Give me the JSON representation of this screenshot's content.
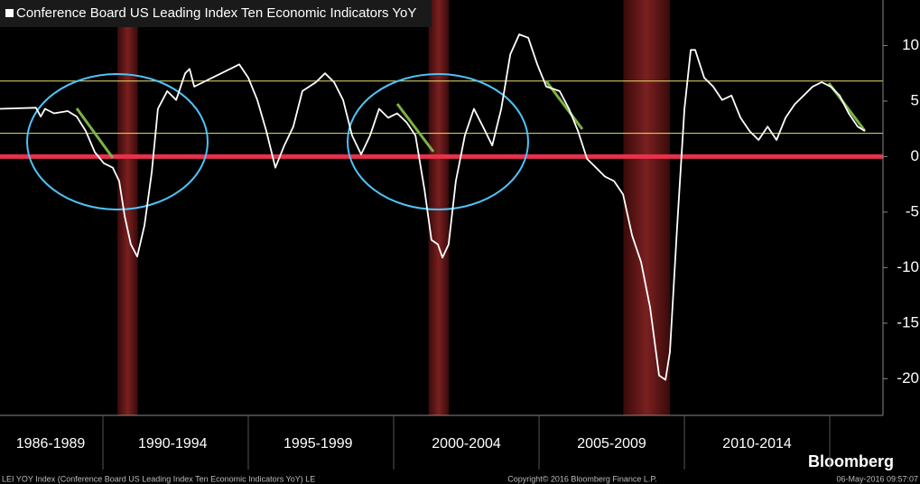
{
  "chart_data": {
    "type": "line",
    "title": "Conference Board US Leading Index Ten Economic Indicators YoY",
    "x": [
      1986.46,
      1987.7,
      1987.86,
      1988.01,
      1988.32,
      1988.79,
      1989.1,
      1989.41,
      1989.72,
      1990.03,
      1990.34,
      1990.56,
      1990.75,
      1990.96,
      1991.18,
      1991.43,
      1991.68,
      1991.89,
      1992.21,
      1992.52,
      1992.83,
      1992.98,
      1993.14,
      1993.45,
      1993.76,
      1994.07,
      1994.38,
      1994.69,
      1995.0,
      1995.31,
      1995.62,
      1995.93,
      1996.24,
      1996.55,
      1996.86,
      1997.33,
      1997.64,
      1997.95,
      1998.26,
      1998.57,
      1998.88,
      1999.19,
      1999.5,
      1999.81,
      2000.12,
      2000.44,
      2000.75,
      2001.06,
      2001.3,
      2001.52,
      2001.68,
      2001.89,
      2002.14,
      2002.45,
      2002.76,
      2003.07,
      2003.39,
      2003.7,
      2004.01,
      2004.32,
      2004.63,
      2004.94,
      2005.25,
      2005.71,
      2006.03,
      2006.34,
      2006.65,
      2006.96,
      2007.27,
      2007.58,
      2007.89,
      2008.2,
      2008.51,
      2008.82,
      2009.13,
      2009.35,
      2009.5,
      2009.75,
      2010.0,
      2010.22,
      2010.37,
      2010.68,
      2010.99,
      2011.3,
      2011.62,
      2011.93,
      2012.24,
      2012.55,
      2012.86,
      2013.17,
      2013.48,
      2013.79,
      2014.1,
      2014.41,
      2014.72,
      2015.03,
      2015.34,
      2015.65,
      2015.96,
      2016.21
    ],
    "series": [
      {
        "name": "Conference Board US Leading Index Ten Economic Indicators YoY",
        "color": "#ffffff",
        "values": [
          4.3,
          4.4,
          3.6,
          4.3,
          3.9,
          4.1,
          3.6,
          2.3,
          0.4,
          -0.6,
          -1.0,
          -2.2,
          -5.4,
          -7.9,
          -9.0,
          -6.2,
          -1.4,
          4.3,
          5.9,
          5.1,
          7.5,
          7.9,
          6.3,
          6.7,
          7.1,
          7.5,
          7.9,
          8.3,
          7.1,
          5.1,
          2.3,
          -1.0,
          1.0,
          2.7,
          5.9,
          6.7,
          7.5,
          6.7,
          5.1,
          1.9,
          0.2,
          1.9,
          4.3,
          3.5,
          3.9,
          3.1,
          1.9,
          -3.0,
          -7.5,
          -7.9,
          -9.1,
          -7.9,
          -2.2,
          1.9,
          4.3,
          2.7,
          1.0,
          4.3,
          9.2,
          11.0,
          10.7,
          8.3,
          6.3,
          5.9,
          4.3,
          2.3,
          -0.2,
          -1.0,
          -1.8,
          -2.2,
          -3.4,
          -7.1,
          -9.5,
          -13.6,
          -19.7,
          -20.1,
          -17.6,
          -6.3,
          4.3,
          9.6,
          9.6,
          7.1,
          6.3,
          5.1,
          5.5,
          3.5,
          2.3,
          1.5,
          2.7,
          1.5,
          3.5,
          4.7,
          5.5,
          6.3,
          6.7,
          6.3,
          5.5,
          3.9,
          2.7,
          2.3
        ]
      }
    ],
    "xlim": [
      1986.46,
      2016.83
    ],
    "ylim": [
      -23.3,
      14.1
    ],
    "yticks": [
      -20,
      -15,
      -10,
      -5,
      0,
      5,
      10
    ],
    "xticks": [
      {
        "value": 1988.2,
        "label": "1986-1989"
      },
      {
        "value": 1992.4,
        "label": "1990-1994"
      },
      {
        "value": 1997.4,
        "label": "1995-1999"
      },
      {
        "value": 2002.5,
        "label": "2000-2004"
      },
      {
        "value": 2007.5,
        "label": "2005-2009"
      },
      {
        "value": 2012.5,
        "label": "2010-2014"
      }
    ],
    "x_dividers": [
      1990,
      1995,
      2000,
      2005,
      2010,
      2015
    ],
    "recessions": [
      {
        "start": 1990.5,
        "end": 1991.2
      },
      {
        "start": 2001.2,
        "end": 2001.9
      },
      {
        "start": 2007.9,
        "end": 2009.5
      }
    ],
    "hlines": [
      {
        "value": 6.8,
        "color": "#e8e070"
      },
      {
        "value": 2.1,
        "color": "#e8e070"
      },
      {
        "value": 0,
        "color": "#e8314a"
      }
    ],
    "footer_left": "LEI YOY Index (Conference Board US Leading Index Ten Economic Indicators YoY) LE",
    "footer_center": "Copyright© 2016 Bloomberg Finance L.P.",
    "footer_right": "06-May-2016 09:57:07",
    "brand": "Bloomberg"
  }
}
